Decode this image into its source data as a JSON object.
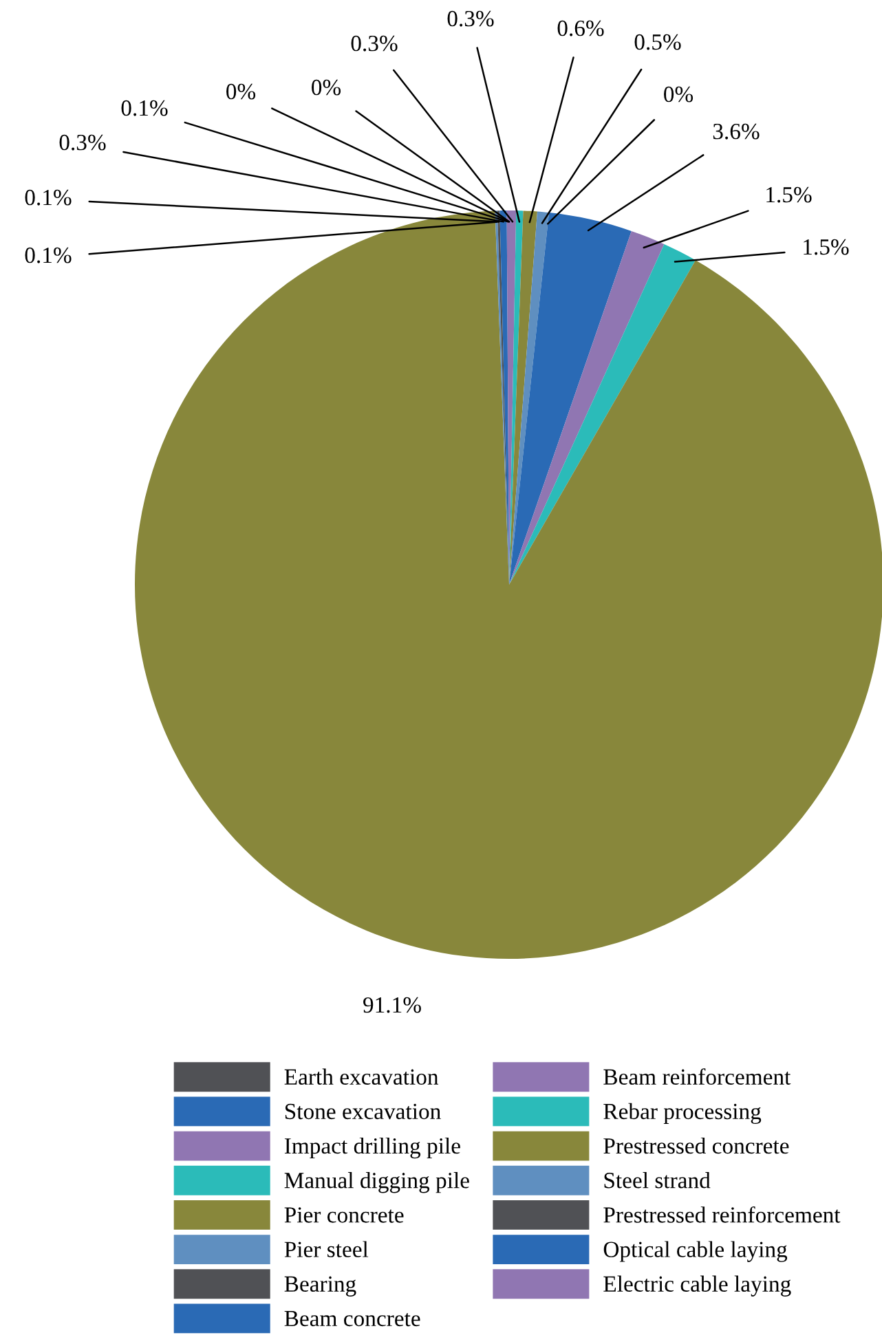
{
  "chart_data": {
    "type": "pie",
    "categories": [
      "Earth excavation",
      "Stone excavation",
      "Impact drilling pile",
      "Manual digging pile",
      "Pier concrete",
      "Pier steel",
      "Bearing",
      "Beam concrete",
      "Beam reinforcement",
      "Rebar processing",
      "Prestressed concrete",
      "Steel strand",
      "Prestressed reinforcement",
      "Optical cable laying",
      "Electric cable laying"
    ],
    "values": [
      0,
      0,
      0.3,
      0.3,
      0.6,
      0.5,
      0,
      3.6,
      1.5,
      1.5,
      91.1,
      0.1,
      0.1,
      0.3,
      0.1
    ],
    "value_labels": [
      "0%",
      "0%",
      "0.3%",
      "0.3%",
      "0.6%",
      "0.5%",
      "0%",
      "3.6%",
      "1.5%",
      "1.5%",
      "91.1%",
      "0.1%",
      "0.1%",
      "0.3%",
      "0.1%"
    ],
    "colors": [
      "#505155",
      "#2a6ab5",
      "#9076b2",
      "#2bbbb9",
      "#88873b",
      "#5f8fc0",
      "#505155",
      "#2a6ab5",
      "#9076b2",
      "#2bbbb9",
      "#88873b",
      "#5f8fc0",
      "#505155",
      "#2a6ab5",
      "#9076b2"
    ],
    "legend": "bottom"
  }
}
